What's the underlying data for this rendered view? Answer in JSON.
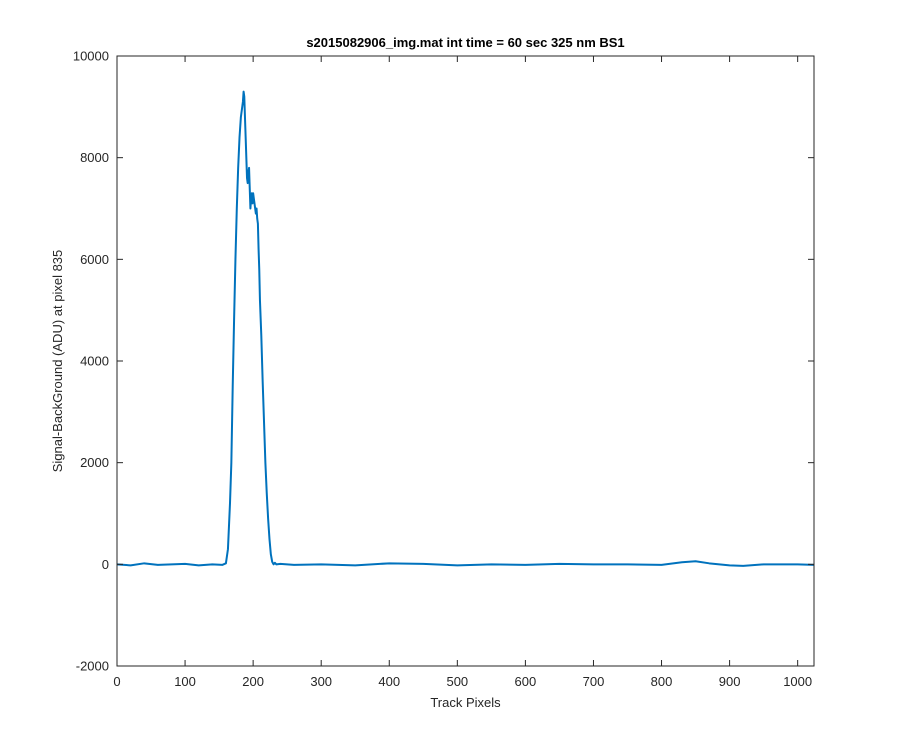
{
  "chart_data": {
    "type": "line",
    "title": "s2015082906_img.mat int time = 60 sec  325 nm BS1",
    "xlabel": "Track Pixels",
    "ylabel": "Signal-BackGround (ADU) at pixel 835",
    "xlim": [
      0,
      1024
    ],
    "ylim": [
      -2000,
      10000
    ],
    "xticks": [
      0,
      100,
      200,
      300,
      400,
      500,
      600,
      700,
      800,
      900,
      1000
    ],
    "yticks": [
      -2000,
      0,
      2000,
      4000,
      6000,
      8000,
      10000
    ],
    "xtick_labels": [
      "0",
      "100",
      "200",
      "300",
      "400",
      "500",
      "600",
      "700",
      "800",
      "900",
      "1000"
    ],
    "ytick_labels": [
      "-2000",
      "0",
      "2000",
      "4000",
      "6000",
      "8000",
      "10000"
    ],
    "grid": false,
    "line_color": "#0072BD",
    "series": [
      {
        "x": [
          0,
          20,
          40,
          60,
          80,
          100,
          120,
          140,
          155,
          160,
          163,
          166,
          168,
          170,
          172,
          174,
          176,
          178,
          180,
          182,
          184,
          185,
          186,
          187,
          188,
          189,
          190,
          191,
          192,
          193,
          194,
          195,
          196,
          197,
          198,
          199,
          200,
          201,
          202,
          203,
          204,
          205,
          206,
          207,
          208,
          209,
          210,
          212,
          214,
          216,
          218,
          220,
          222,
          224,
          226,
          228,
          230,
          232,
          234,
          240,
          260,
          300,
          350,
          400,
          450,
          500,
          550,
          600,
          650,
          700,
          750,
          800,
          830,
          850,
          870,
          900,
          920,
          950,
          1000,
          1024
        ],
        "y": [
          0,
          -20,
          20,
          -10,
          0,
          10,
          -20,
          0,
          -10,
          20,
          300,
          1200,
          2000,
          3500,
          4800,
          6000,
          7000,
          7800,
          8400,
          8800,
          9000,
          9100,
          9300,
          9200,
          8800,
          8400,
          8000,
          7600,
          7500,
          7700,
          7800,
          7400,
          7000,
          7200,
          7300,
          7100,
          7300,
          7200,
          7100,
          7000,
          6900,
          7000,
          6800,
          6700,
          6200,
          5800,
          5200,
          4500,
          3600,
          2800,
          2000,
          1400,
          900,
          500,
          200,
          50,
          0,
          30,
          0,
          10,
          -10,
          0,
          -20,
          20,
          10,
          -20,
          0,
          -10,
          10,
          0,
          0,
          -10,
          40,
          60,
          20,
          -20,
          -30,
          0,
          0,
          -10
        ]
      }
    ]
  }
}
